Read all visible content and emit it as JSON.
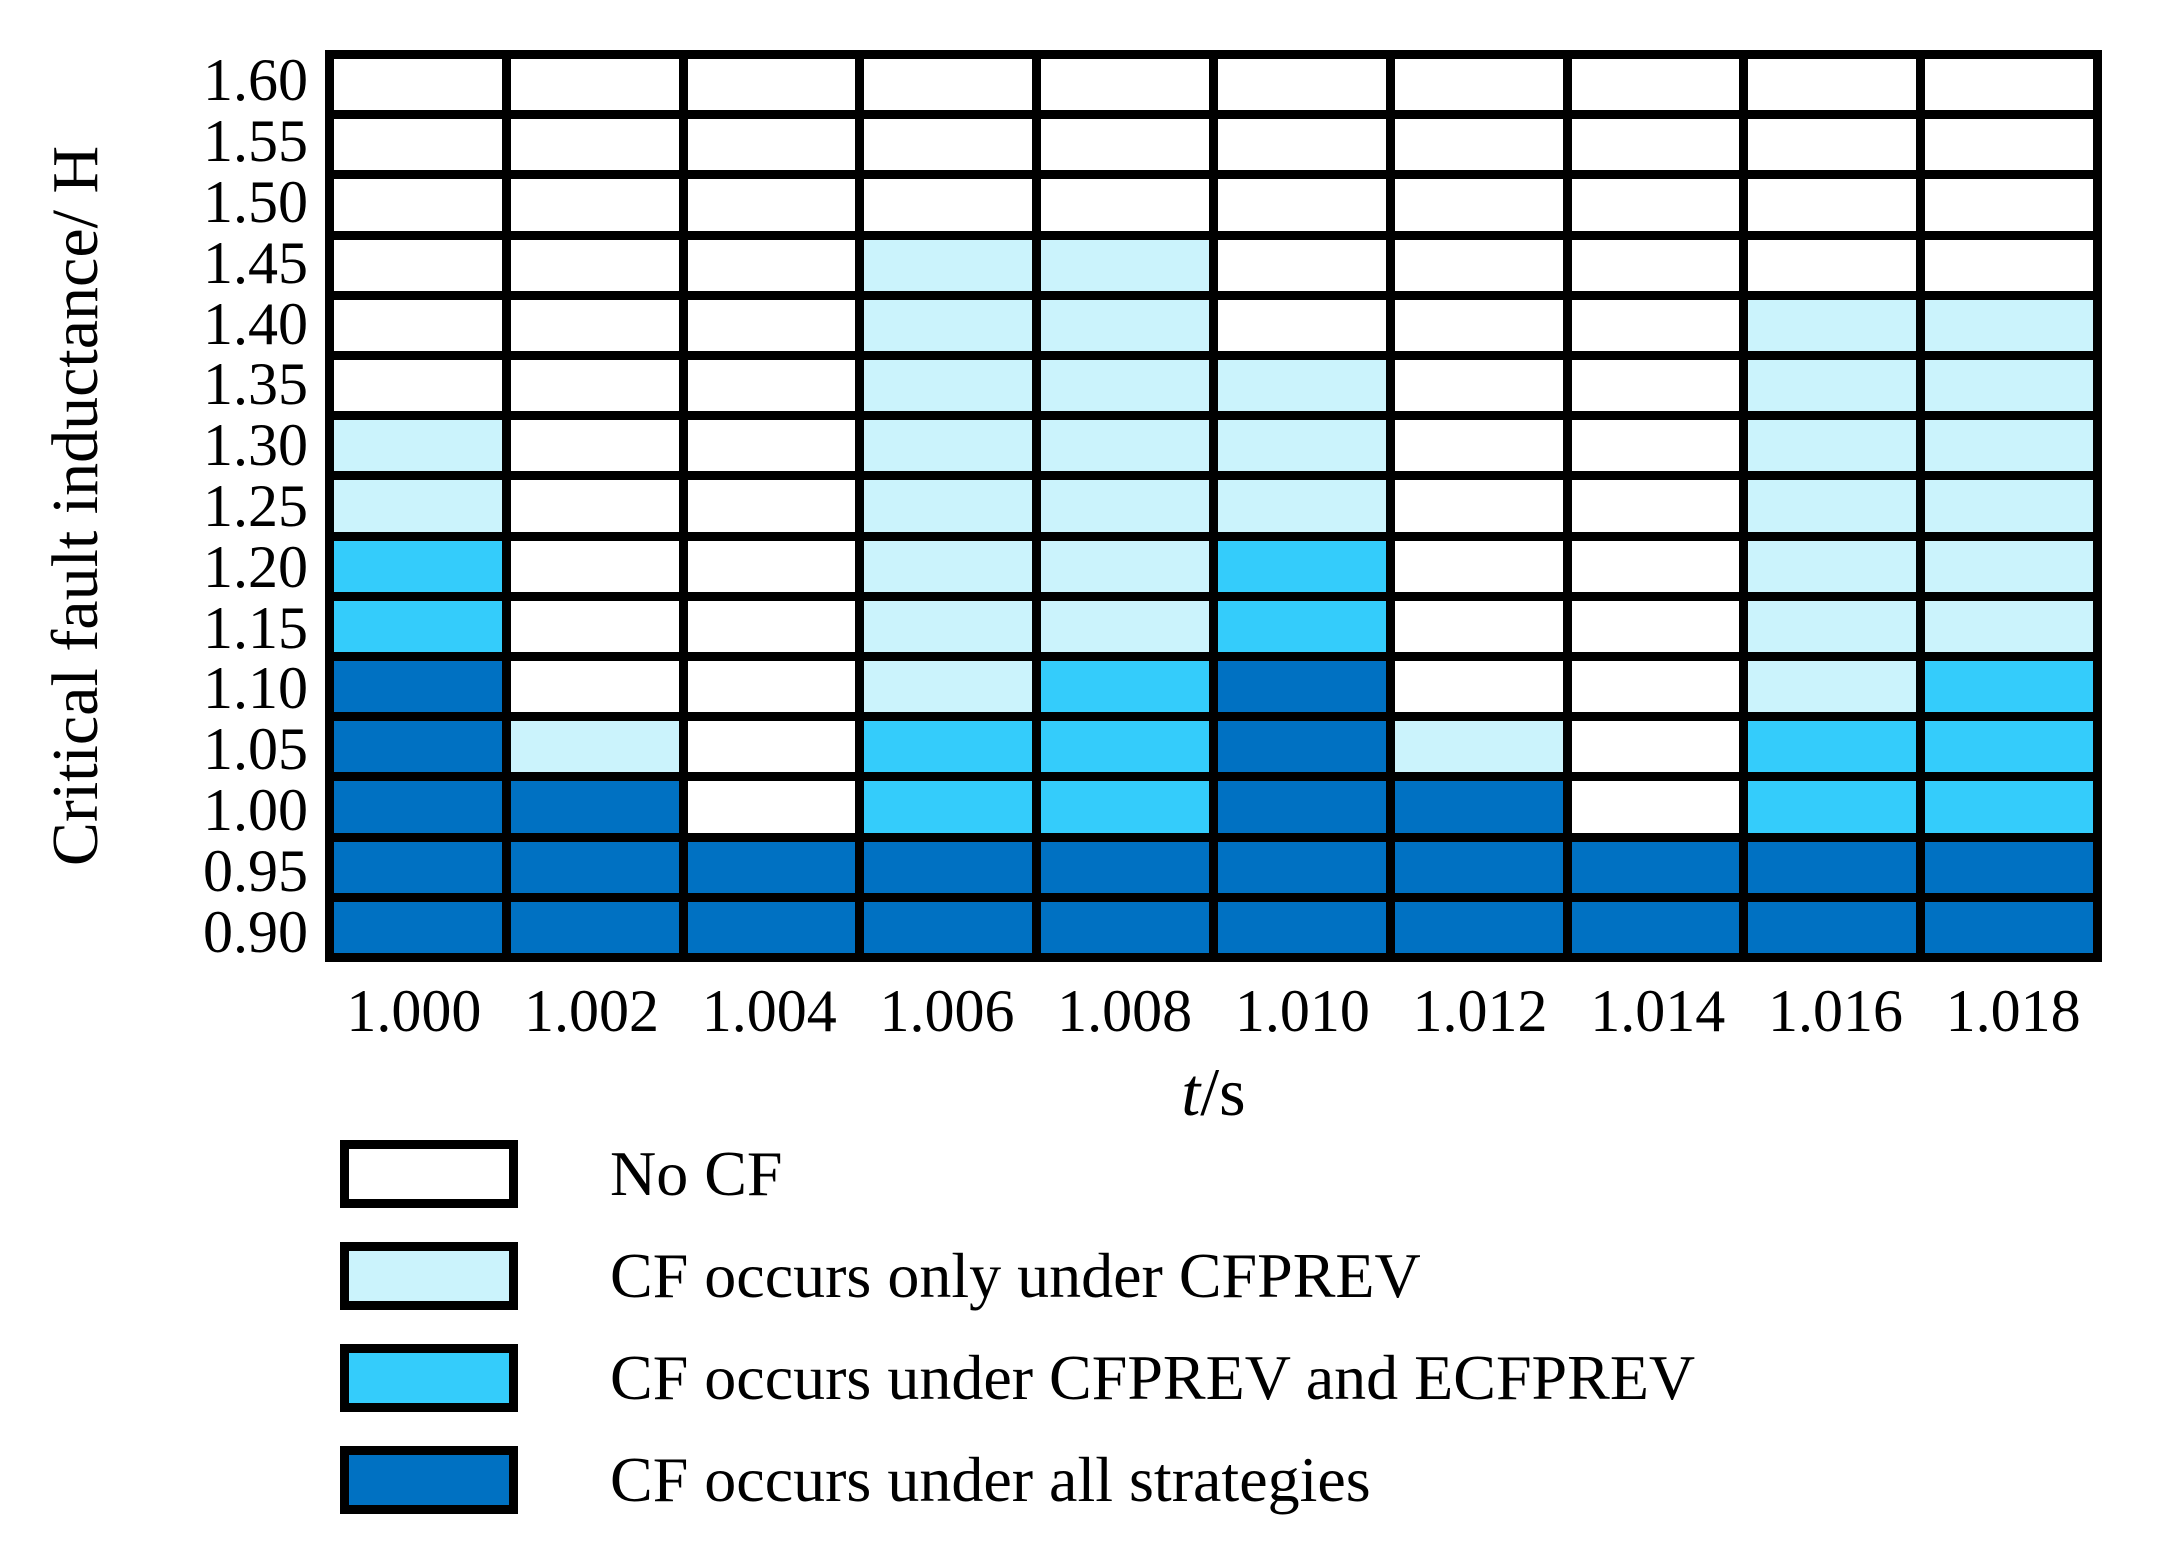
{
  "figure": {
    "y_axis": {
      "title": "Critical fault inductance/ H"
    },
    "x_axis": {
      "variable": "t",
      "unit_suffix": "/s"
    }
  },
  "colors": {
    "no_cf": "#FFFFFF",
    "cfprev_only": "#CBF3FC",
    "cfprev_and_ecfprev": "#34CCFB",
    "all_strategies": "#0071C2",
    "grid_line": "#000000"
  },
  "legend": [
    {
      "label": "No CF",
      "color": "no_cf"
    },
    {
      "label": "CF occurs only under CFPREV",
      "color": "cfprev_only"
    },
    {
      "label": "CF occurs under CFPREV and ECFPREV",
      "color": "cfprev_and_ecfprev"
    },
    {
      "label": "CF occurs under all strategies",
      "color": "all_strategies"
    }
  ],
  "chart_data": {
    "type": "heatmap",
    "xlabel": "t/s",
    "ylabel": "Critical fault inductance/ H",
    "x": [
      "1.000",
      "1.002",
      "1.004",
      "1.006",
      "1.008",
      "1.010",
      "1.012",
      "1.014",
      "1.016",
      "1.018"
    ],
    "y_top_to_bottom": [
      "1.60",
      "1.55",
      "1.50",
      "1.45",
      "1.40",
      "1.35",
      "1.30",
      "1.25",
      "1.20",
      "1.15",
      "1.10",
      "1.05",
      "1.00",
      "0.95",
      "0.90"
    ],
    "code_meanings": {
      "0": "No CF",
      "1": "CF occurs only under CFPREV",
      "2": "CF occurs under CFPREV and ECFPREV",
      "3": "CF occurs under all strategies"
    },
    "code_colors": {
      "0": "no_cf",
      "1": "cfprev_only",
      "2": "cfprev_and_ecfprev",
      "3": "all_strategies"
    },
    "rows": [
      "0000000000",
      "0000000000",
      "0000000000",
      "0001100000",
      "0001100011",
      "0001110011",
      "1001110011",
      "1001110011",
      "2001120011",
      "2001120011",
      "3001230012",
      "3102231022",
      "3302233022",
      "3333333333",
      "3333333333"
    ],
    "legend_position": "bottom-left",
    "grid": "on"
  }
}
